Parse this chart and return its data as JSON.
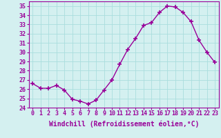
{
  "x": [
    0,
    1,
    2,
    3,
    4,
    5,
    6,
    7,
    8,
    9,
    10,
    11,
    12,
    13,
    14,
    15,
    16,
    17,
    18,
    19,
    20,
    21,
    22,
    23
  ],
  "y": [
    26.6,
    26.1,
    26.1,
    26.4,
    25.9,
    24.9,
    24.7,
    24.4,
    24.8,
    25.9,
    27.0,
    28.7,
    30.3,
    31.5,
    32.9,
    33.2,
    34.3,
    35.0,
    34.9,
    34.3,
    33.3,
    31.3,
    30.0,
    28.9
  ],
  "line_color": "#990099",
  "marker": "+",
  "marker_size": 4,
  "bg_color": "#d4f0f0",
  "grid_color": "#aadddd",
  "xlim": [
    -0.5,
    23.5
  ],
  "ylim": [
    24,
    35.5
  ],
  "yticks": [
    24,
    25,
    26,
    27,
    28,
    29,
    30,
    31,
    32,
    33,
    34,
    35
  ],
  "xtick_labels": [
    "0",
    "1",
    "2",
    "3",
    "4",
    "5",
    "6",
    "7",
    "8",
    "9",
    "10",
    "11",
    "12",
    "13",
    "14",
    "15",
    "16",
    "17",
    "18",
    "19",
    "20",
    "21",
    "22",
    "23"
  ],
  "xlabel": "Windchill (Refroidissement éolien,°C)",
  "xlabel_fontsize": 7.0,
  "tick_fontsize": 6.0,
  "line_width": 1.0,
  "title_color": "#990099",
  "axis_color": "#990099"
}
